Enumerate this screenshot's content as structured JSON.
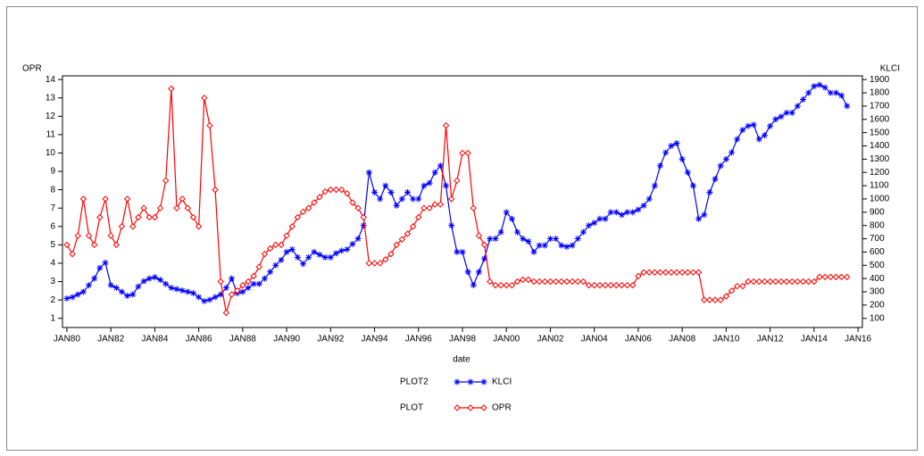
{
  "chart_data": {
    "type": "line",
    "xlabel": "date",
    "ylabel": "OPR",
    "y2label": "KLCI",
    "x": [
      1980,
      1980.25,
      1980.5,
      1980.75,
      1981,
      1981.25,
      1981.5,
      1981.75,
      1982,
      1982.25,
      1982.5,
      1982.75,
      1983,
      1983.25,
      1983.5,
      1983.75,
      1984,
      1984.25,
      1984.5,
      1984.75,
      1985,
      1985.25,
      1985.5,
      1985.75,
      1986,
      1986.25,
      1986.5,
      1986.75,
      1987,
      1987.25,
      1987.5,
      1987.75,
      1988,
      1988.25,
      1988.5,
      1988.75,
      1989,
      1989.25,
      1989.5,
      1989.75,
      1990,
      1990.25,
      1990.5,
      1990.75,
      1991,
      1991.25,
      1991.5,
      1991.75,
      1992,
      1992.25,
      1992.5,
      1992.75,
      1993,
      1993.25,
      1993.5,
      1993.75,
      1994,
      1994.25,
      1994.5,
      1994.75,
      1995,
      1995.25,
      1995.5,
      1995.75,
      1996,
      1996.25,
      1996.5,
      1996.75,
      1997,
      1997.25,
      1997.5,
      1997.75,
      1998,
      1998.25,
      1998.5,
      1998.75,
      1999,
      1999.25,
      1999.5,
      1999.75,
      2000,
      2000.25,
      2000.5,
      2000.75,
      2001,
      2001.25,
      2001.5,
      2001.75,
      2002,
      2002.25,
      2002.5,
      2002.75,
      2003,
      2003.25,
      2003.5,
      2003.75,
      2004,
      2004.25,
      2004.5,
      2004.75,
      2005,
      2005.25,
      2005.5,
      2005.75,
      2006,
      2006.25,
      2006.5,
      2006.75,
      2007,
      2007.25,
      2007.5,
      2007.75,
      2008,
      2008.25,
      2008.5,
      2008.75,
      2009,
      2009.25,
      2009.5,
      2009.75,
      2010,
      2010.25,
      2010.5,
      2010.75,
      2011,
      2011.25,
      2011.5,
      2011.75,
      2012,
      2012.25,
      2012.5,
      2012.75,
      2013,
      2013.25,
      2013.5,
      2013.75,
      2014,
      2014.25,
      2014.5,
      2014.75,
      2015,
      2015.25,
      2015.5
    ],
    "series": [
      {
        "name": "KLCI",
        "legend_group": "PLOT2",
        "color": "#0000ff",
        "marker": "star",
        "axis": "y2",
        "values": [
          250,
          260,
          280,
          300,
          350,
          400,
          480,
          520,
          350,
          330,
          300,
          270,
          280,
          340,
          380,
          400,
          410,
          390,
          360,
          330,
          320,
          310,
          300,
          290,
          260,
          230,
          240,
          260,
          280,
          330,
          400,
          290,
          300,
          330,
          360,
          360,
          400,
          450,
          500,
          540,
          600,
          620,
          560,
          510,
          560,
          600,
          580,
          560,
          560,
          590,
          610,
          620,
          660,
          700,
          800,
          1200,
          1050,
          1000,
          1100,
          1050,
          950,
          1000,
          1050,
          1000,
          1000,
          1100,
          1120,
          1200,
          1250,
          1100,
          800,
          600,
          600,
          450,
          350,
          450,
          550,
          700,
          700,
          750,
          900,
          850,
          750,
          700,
          680,
          600,
          650,
          650,
          700,
          700,
          650,
          640,
          650,
          700,
          750,
          800,
          820,
          850,
          850,
          900,
          900,
          880,
          900,
          900,
          920,
          950,
          1000,
          1100,
          1250,
          1350,
          1400,
          1420,
          1300,
          1200,
          1100,
          850,
          880,
          1050,
          1150,
          1250,
          1300,
          1350,
          1450,
          1520,
          1550,
          1560,
          1450,
          1480,
          1550,
          1600,
          1620,
          1650,
          1650,
          1700,
          1750,
          1800,
          1850,
          1860,
          1840,
          1800,
          1800,
          1780,
          1700
        ]
      },
      {
        "name": "OPR",
        "legend_group": "PLOT",
        "color": "#ff0000",
        "marker": "diamond",
        "axis": "y",
        "values": [
          5,
          4.5,
          5.5,
          7.5,
          5.5,
          5,
          6.5,
          7.5,
          5.5,
          5,
          6,
          7.5,
          6,
          6.5,
          7,
          6.5,
          6.5,
          7,
          8.5,
          13.5,
          7,
          7.5,
          7,
          6.5,
          6,
          13,
          11.5,
          8,
          3,
          1.3,
          2.3,
          2.5,
          2.8,
          3,
          3.3,
          3.8,
          4.5,
          4.8,
          5,
          5,
          5.5,
          6,
          6.5,
          6.8,
          7,
          7.3,
          7.6,
          7.9,
          8,
          8,
          8,
          7.8,
          7.3,
          7,
          6.5,
          4,
          4,
          4,
          4.2,
          4.5,
          5,
          5.3,
          5.6,
          6,
          6.5,
          7,
          7,
          7.2,
          7.2,
          11.5,
          7.5,
          8.5,
          10,
          10,
          7,
          5.5,
          5,
          3,
          2.8,
          2.8,
          2.8,
          2.8,
          3,
          3.1,
          3.1,
          3,
          3,
          3,
          3,
          3,
          3,
          3,
          3,
          3,
          3,
          2.8,
          2.8,
          2.8,
          2.8,
          2.8,
          2.8,
          2.8,
          2.8,
          2.8,
          3.3,
          3.5,
          3.5,
          3.5,
          3.5,
          3.5,
          3.5,
          3.5,
          3.5,
          3.5,
          3.5,
          3.5,
          2,
          2,
          2,
          2,
          2.2,
          2.5,
          2.75,
          2.75,
          3,
          3,
          3,
          3,
          3,
          3,
          3,
          3,
          3,
          3,
          3,
          3,
          3,
          3.25,
          3.25,
          3.25,
          3.25,
          3.25,
          3.25
        ]
      }
    ],
    "xlim": [
      1979.8,
      2016.2
    ],
    "xticks": [
      {
        "value": 1980,
        "label": "JAN80"
      },
      {
        "value": 1982,
        "label": "JAN82"
      },
      {
        "value": 1984,
        "label": "JAN84"
      },
      {
        "value": 1986,
        "label": "JAN86"
      },
      {
        "value": 1988,
        "label": "JAN88"
      },
      {
        "value": 1990,
        "label": "JAN90"
      },
      {
        "value": 1992,
        "label": "JAN92"
      },
      {
        "value": 1994,
        "label": "JAN94"
      },
      {
        "value": 1996,
        "label": "JAN96"
      },
      {
        "value": 1998,
        "label": "JAN98"
      },
      {
        "value": 2000,
        "label": "JAN00"
      },
      {
        "value": 2002,
        "label": "JAN02"
      },
      {
        "value": 2004,
        "label": "JAN04"
      },
      {
        "value": 2006,
        "label": "JAN06"
      },
      {
        "value": 2008,
        "label": "JAN08"
      },
      {
        "value": 2010,
        "label": "JAN10"
      },
      {
        "value": 2012,
        "label": "JAN12"
      },
      {
        "value": 2014,
        "label": "JAN14"
      },
      {
        "value": 2016,
        "label": "JAN16"
      }
    ],
    "ylim": [
      0.5,
      14.2
    ],
    "yticks": [
      1,
      2,
      3,
      4,
      5,
      6,
      7,
      8,
      9,
      10,
      11,
      12,
      13,
      14
    ],
    "y2lim": [
      31,
      1928
    ],
    "y2ticks": [
      100,
      200,
      300,
      400,
      500,
      600,
      700,
      800,
      900,
      1000,
      1100,
      1200,
      1300,
      1400,
      1500,
      1600,
      1700,
      1800,
      1900
    ]
  }
}
